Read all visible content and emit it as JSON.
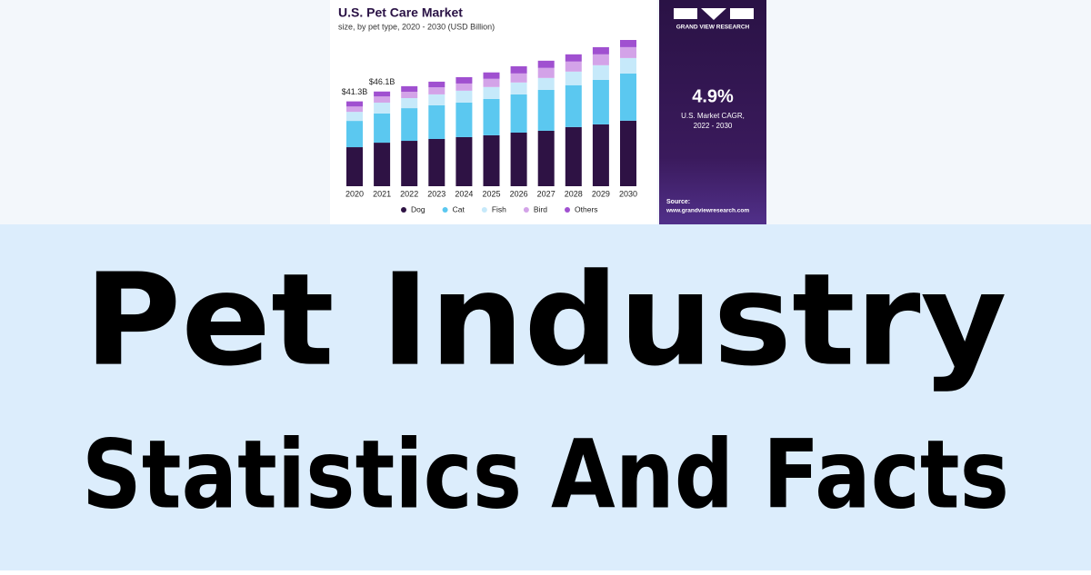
{
  "chart_data": {
    "type": "stacked-bar",
    "title": "U.S. Pet Care Market",
    "subtitle": "size, by pet type, 2020 - 2030 (USD Billion)",
    "categories": [
      "2020",
      "2021",
      "2022",
      "2023",
      "2024",
      "2025",
      "2026",
      "2027",
      "2028",
      "2029",
      "2030"
    ],
    "series": [
      {
        "name": "Dog",
        "color": "#2e1244",
        "values": [
          19.0,
          21.2,
          22.1,
          23.0,
          23.9,
          24.8,
          26.1,
          27.0,
          28.8,
          30.1,
          31.9
        ]
      },
      {
        "name": "Cat",
        "color": "#5bc8f0",
        "values": [
          12.8,
          14.2,
          15.9,
          16.4,
          16.8,
          17.7,
          18.6,
          19.9,
          20.4,
          21.7,
          23.0
        ]
      },
      {
        "name": "Fish",
        "color": "#c6e9fa",
        "values": [
          4.4,
          5.3,
          4.9,
          5.3,
          5.8,
          5.8,
          5.8,
          5.8,
          6.6,
          7.1,
          7.5
        ]
      },
      {
        "name": "Bird",
        "color": "#d3a3e8",
        "values": [
          2.6,
          3.0,
          3.1,
          3.5,
          3.5,
          4.0,
          4.4,
          4.9,
          4.9,
          5.3,
          5.3
        ]
      },
      {
        "name": "Others",
        "color": "#a050d0",
        "values": [
          2.5,
          2.4,
          2.7,
          2.7,
          3.1,
          3.1,
          3.5,
          3.5,
          3.5,
          3.5,
          3.5
        ]
      }
    ],
    "annotations": [
      {
        "category": "2020",
        "value": 41.3,
        "label": "$41.3B"
      },
      {
        "category": "2021",
        "value": 46.1,
        "label": "$46.1B"
      }
    ]
  },
  "panel": {
    "brand": "GRAND VIEW RESEARCH",
    "stat": "4.9%",
    "stat_caption_1": "U.S. Market CAGR,",
    "stat_caption_2": "2022 - 2030",
    "source_label": "Source:",
    "source_url": "www.grandviewresearch.com"
  },
  "headline": {
    "line_1": "Pet Industry",
    "line_2": "Statistics And Facts"
  }
}
